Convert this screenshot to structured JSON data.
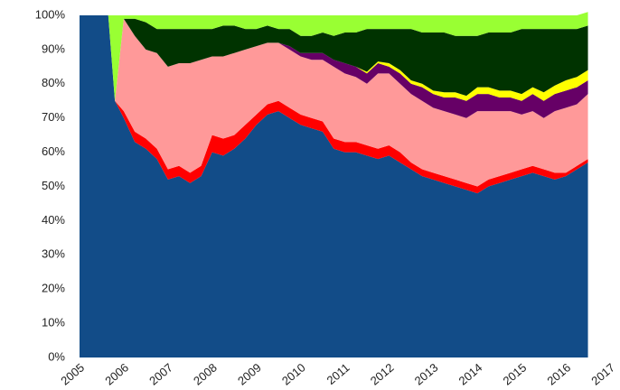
{
  "chart_data": {
    "type": "stacked-area-percent",
    "x": [
      2005,
      2005.25,
      2005.5,
      2005.65,
      2005.8,
      2006,
      2006.25,
      2006.5,
      2006.75,
      2007,
      2007.25,
      2007.5,
      2007.75,
      2008,
      2008.25,
      2008.5,
      2008.75,
      2009,
      2009.25,
      2009.5,
      2009.75,
      2010,
      2010.25,
      2010.5,
      2010.75,
      2011,
      2011.25,
      2011.5,
      2011.75,
      2012,
      2012.25,
      2012.5,
      2012.75,
      2013,
      2013.25,
      2013.5,
      2013.75,
      2014,
      2014.25,
      2014.5,
      2014.75,
      2015,
      2015.25,
      2015.5,
      2015.75,
      2016,
      2016.25,
      2016.5
    ],
    "series": [
      {
        "color": "#124c88",
        "values": [
          100,
          100,
          100,
          100,
          75,
          70,
          63,
          61,
          58,
          52,
          53,
          51,
          53,
          60,
          59,
          61,
          64,
          68,
          71,
          72,
          70,
          68,
          67,
          66,
          61,
          60,
          60,
          59,
          58,
          59,
          57,
          55,
          53,
          52,
          51,
          50,
          49,
          48,
          50,
          51,
          52,
          53,
          54,
          53,
          52,
          53,
          55,
          57
        ]
      },
      {
        "color": "#ff0000",
        "values": [
          0,
          0,
          0,
          0,
          0,
          2,
          3,
          3,
          3,
          3,
          3,
          3,
          3,
          5,
          5,
          4,
          4,
          3,
          3,
          3,
          3,
          3,
          3,
          3,
          3,
          3,
          3,
          3,
          3,
          3,
          3,
          2,
          2,
          2,
          2,
          2,
          2,
          2,
          2,
          2,
          2,
          2,
          2,
          2,
          2,
          1,
          1,
          1
        ]
      },
      {
        "color": "#ff9999",
        "values": [
          0,
          0,
          0,
          0,
          0,
          27,
          28,
          26,
          28,
          30,
          30,
          32,
          31,
          23,
          24,
          24,
          22,
          20,
          18,
          17,
          17,
          17,
          17,
          18,
          21,
          20,
          19,
          18,
          22,
          21,
          20,
          20,
          20,
          19,
          19,
          19,
          19,
          22,
          20,
          19,
          18,
          16,
          16,
          15,
          18,
          19,
          18,
          19
        ]
      },
      {
        "color": "#660066",
        "values": [
          0,
          0,
          0,
          0,
          0,
          0,
          0,
          0,
          0,
          0,
          0,
          0,
          0,
          0,
          0,
          0,
          0,
          0,
          0,
          0,
          1,
          1,
          2,
          2,
          2,
          3,
          3,
          3,
          3,
          2,
          3,
          3,
          4,
          4,
          4,
          5,
          5,
          5,
          5,
          4,
          4,
          4,
          5,
          5,
          5,
          5,
          5,
          4
        ]
      },
      {
        "color": "#ffff00",
        "values": [
          0,
          0,
          0,
          0,
          0,
          0,
          0,
          0,
          0,
          0,
          0,
          0,
          0,
          0,
          0,
          0,
          0,
          0,
          0,
          0,
          0,
          0,
          0,
          0,
          0,
          0,
          0,
          0.5,
          0.5,
          1,
          1,
          1,
          1,
          1,
          1.5,
          1.5,
          1.5,
          2,
          2,
          2,
          2,
          2,
          2,
          2.5,
          2.5,
          3,
          3,
          3
        ]
      },
      {
        "color": "#003300",
        "values": [
          0,
          0,
          0,
          0,
          0,
          0,
          5,
          8,
          7,
          11,
          10,
          10,
          9,
          8,
          9,
          8,
          6,
          5,
          5,
          4,
          5,
          5,
          5,
          6,
          7,
          9,
          10,
          12.5,
          9.5,
          10,
          12,
          15,
          15,
          17,
          17.5,
          16.5,
          17.5,
          15,
          16,
          17,
          17,
          19,
          17,
          18.5,
          16.5,
          15,
          14,
          13
        ]
      },
      {
        "color": "#99ff33",
        "values": [
          0,
          0,
          0,
          0,
          25,
          1,
          1,
          2,
          4,
          4,
          4,
          4,
          4,
          4,
          3,
          3,
          4,
          4,
          3,
          4,
          4,
          6,
          6,
          5,
          6,
          5,
          5,
          4,
          4,
          4,
          4,
          4,
          5,
          5,
          5,
          6,
          6,
          6,
          5,
          5,
          5,
          4,
          4,
          4,
          4,
          4,
          4,
          4
        ]
      }
    ],
    "xlim": [
      2005,
      2017
    ],
    "xticks": [
      2005,
      2006,
      2007,
      2008,
      2009,
      2010,
      2011,
      2012,
      2013,
      2014,
      2015,
      2016,
      2017
    ],
    "ylim": [
      0,
      100
    ],
    "yticks": [
      {
        "value": 0,
        "label": "0%"
      },
      {
        "value": 10,
        "label": "10%"
      },
      {
        "value": 20,
        "label": "20%"
      },
      {
        "value": 30,
        "label": "30%"
      },
      {
        "value": 40,
        "label": "40%"
      },
      {
        "value": 50,
        "label": "50%"
      },
      {
        "value": 60,
        "label": "60%"
      },
      {
        "value": 70,
        "label": "70%"
      },
      {
        "value": 80,
        "label": "80%"
      },
      {
        "value": 90,
        "label": "90%"
      },
      {
        "value": 100,
        "label": "100%"
      }
    ]
  }
}
